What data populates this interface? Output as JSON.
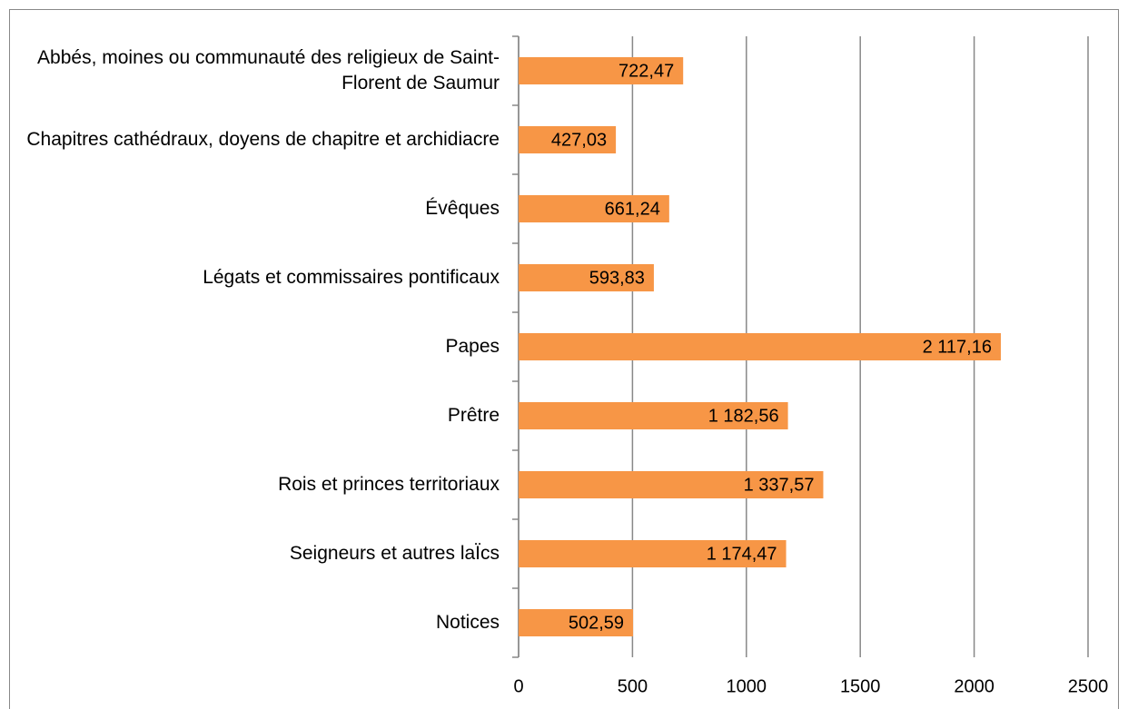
{
  "chart_data": {
    "type": "bar",
    "orientation": "horizontal",
    "categories": [
      "Abbés, moines ou communauté des religieux de Saint-Florent de Saumur",
      "Chapitres cathédraux, doyens de chapitre et archidiacre",
      "Évêques",
      "Légats et commissaires pontificaux",
      "Papes",
      "Prêtre",
      "Rois et princes territoriaux",
      "Seigneurs et autres laÏcs",
      "Notices"
    ],
    "values": [
      722.47,
      427.03,
      661.24,
      593.83,
      2117.16,
      1182.56,
      1337.57,
      1174.47,
      502.59
    ],
    "value_labels": [
      "722,47",
      "427,03",
      "661,24",
      "593,83",
      "2 117,16",
      "1 182,56",
      "1 337,57",
      "1 174,47",
      "502,59"
    ],
    "color": "#f79646",
    "xlim": [
      0,
      2500
    ],
    "xticks": [
      0,
      500,
      1000,
      1500,
      2000,
      2500
    ],
    "grid": true
  }
}
